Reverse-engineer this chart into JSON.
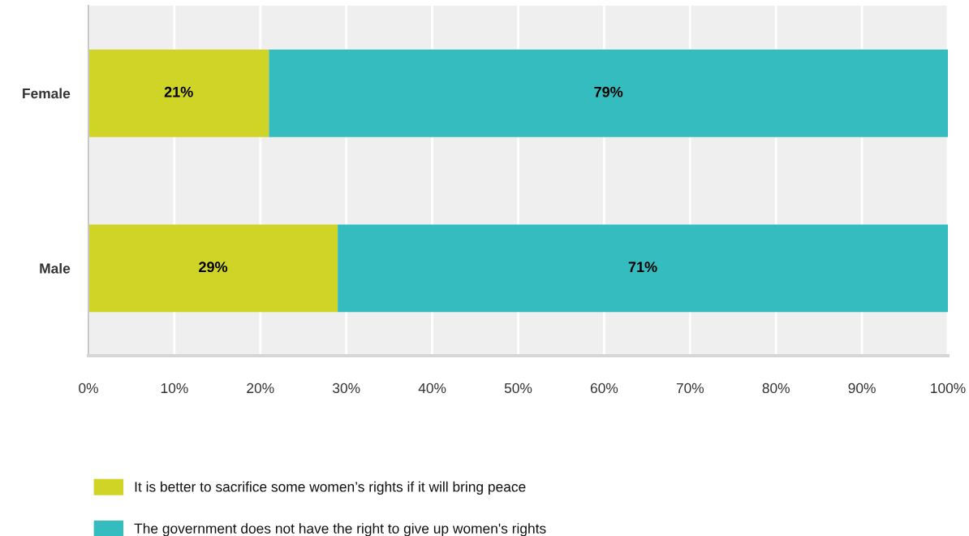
{
  "chart_data": {
    "type": "bar",
    "orientation": "horizontal",
    "stacked": true,
    "categories": [
      "Female",
      "Male"
    ],
    "series": [
      {
        "name": "It is better to sacrifice some women’s rights if it will bring peace",
        "color": "#cfd427",
        "values": [
          21,
          29
        ],
        "value_labels": [
          "21%",
          "29%"
        ]
      },
      {
        "name": "The government does not have the right to give up women's rights",
        "color": "#34bcbf",
        "values": [
          79,
          71
        ],
        "value_labels": [
          "79%",
          "71%"
        ]
      }
    ],
    "xlim": [
      0,
      100
    ],
    "xticks": [
      {
        "value": 0,
        "label": "0%"
      },
      {
        "value": 10,
        "label": "10%"
      },
      {
        "value": 20,
        "label": "20%"
      },
      {
        "value": 30,
        "label": "30%"
      },
      {
        "value": 40,
        "label": "40%"
      },
      {
        "value": 50,
        "label": "50%"
      },
      {
        "value": 60,
        "label": "60%"
      },
      {
        "value": 70,
        "label": "70%"
      },
      {
        "value": 80,
        "label": "80%"
      },
      {
        "value": 90,
        "label": "90%"
      },
      {
        "value": 100,
        "label": "100%"
      }
    ],
    "grid": "x",
    "legend": "bottom"
  }
}
